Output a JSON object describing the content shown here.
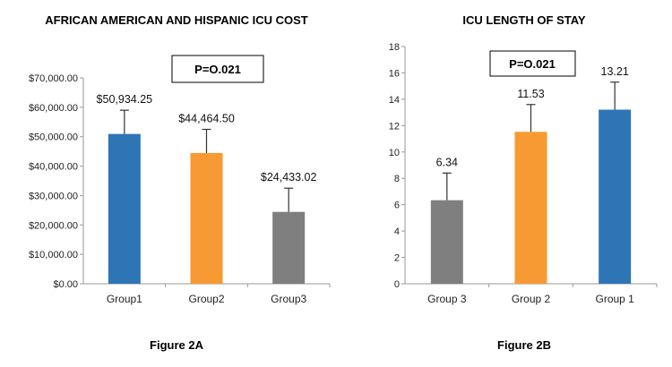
{
  "chart_data": [
    {
      "type": "bar",
      "title": "AFRICAN AMERICAN AND HISPANIC ICU COST",
      "caption": "Figure 2A",
      "annotation": "P=O.021",
      "categories": [
        "Group1",
        "Group2",
        "Group3"
      ],
      "values": [
        50934.25,
        44464.5,
        24433.02
      ],
      "error_upper": [
        59000,
        52500,
        32500
      ],
      "data_labels": [
        "$50,934.25",
        "$44,464.50",
        "$24,433.02"
      ],
      "colors": [
        "#2E75B6",
        "#F79A33",
        "#7F7F7F"
      ],
      "ylim": [
        0,
        70000
      ],
      "yticks": [
        0,
        10000,
        20000,
        30000,
        40000,
        50000,
        60000,
        70000
      ],
      "ytick_labels": [
        "$0.00",
        "$10,000.00",
        "$20,000.00",
        "$30,000.00",
        "$40,000.00",
        "$50,000.00",
        "$60,000.00",
        "$70,000.00"
      ],
      "xlabel": "",
      "ylabel": "",
      "grid": false
    },
    {
      "type": "bar",
      "title": "ICU LENGTH OF STAY",
      "caption": "Figure 2B",
      "annotation": "P=O.021",
      "categories": [
        "Group 3",
        "Group 2",
        "Group 1"
      ],
      "values": [
        6.34,
        11.53,
        13.21
      ],
      "error_upper": [
        8.4,
        13.6,
        15.3
      ],
      "data_labels": [
        "6.34",
        "11.53",
        "13.21"
      ],
      "colors": [
        "#7F7F7F",
        "#F79A33",
        "#2E75B6"
      ],
      "ylim": [
        0,
        18
      ],
      "yticks": [
        0,
        2,
        4,
        6,
        8,
        10,
        12,
        14,
        16,
        18
      ],
      "ytick_labels": [
        "0",
        "2",
        "4",
        "6",
        "8",
        "10",
        "12",
        "14",
        "16",
        "18"
      ],
      "xlabel": "",
      "ylabel": "",
      "grid": false
    }
  ]
}
